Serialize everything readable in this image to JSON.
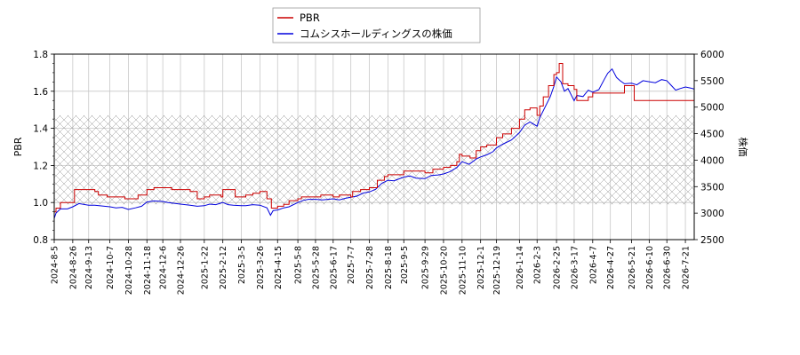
{
  "chart_data": {
    "type": "line",
    "legend": {
      "placement": "top-center",
      "entries": [
        {
          "label": "PBR",
          "color": "#cc0000"
        },
        {
          "label": "コムシスホールディングスの株価",
          "color": "#0000dd"
        }
      ]
    },
    "ylabel_left": "PBR",
    "ylabel_right": "株価",
    "ylim_left": [
      0.8,
      1.8
    ],
    "ylim_right": [
      2500,
      6000
    ],
    "yticks_left": [
      "0.8",
      "1.0",
      "1.2",
      "1.4",
      "1.6",
      "1.8"
    ],
    "yticks_right": [
      "2500",
      "3000",
      "3500",
      "4000",
      "4500",
      "5000",
      "5500",
      "6000"
    ],
    "xlim": [
      "2024-08-05",
      "2026-07-31"
    ],
    "xticks": [
      "2024-8-5",
      "2024-8-26",
      "2024-9-13",
      "2024-10-7",
      "2024-10-28",
      "2024-11-18",
      "2024-12-6",
      "2024-12-26",
      "2025-1-22",
      "2025-2-12",
      "2025-3-5",
      "2025-3-26",
      "2025-4-15",
      "2025-5-8",
      "2025-5-28",
      "2025-6-17",
      "2025-7-7",
      "2025-7-28",
      "2025-8-18",
      "2025-9-5",
      "2025-9-29",
      "2025-10-20",
      "2025-11-10",
      "2025-12-1",
      "2025-12-19",
      "2026-1-14",
      "2026-2-3",
      "2026-2-25",
      "2026-3-17",
      "2026-4-7",
      "2026-4-27",
      "2026-5-21",
      "2026-6-10",
      "2026-6-30",
      "2026-7-21"
    ],
    "hatched_band_left": [
      0.99,
      1.47
    ],
    "grid": true,
    "series": [
      {
        "name": "PBR",
        "axis": "left",
        "color": "#cc0000",
        "points": [
          [
            "2024-08-05",
            0.95
          ],
          [
            "2024-08-07",
            0.97
          ],
          [
            "2024-08-12",
            1.0
          ],
          [
            "2024-08-26",
            1.0
          ],
          [
            "2024-08-28",
            1.07
          ],
          [
            "2024-09-13",
            1.07
          ],
          [
            "2024-09-20",
            1.06
          ],
          [
            "2024-09-24",
            1.04
          ],
          [
            "2024-10-02",
            1.04
          ],
          [
            "2024-10-04",
            1.03
          ],
          [
            "2024-10-20",
            1.03
          ],
          [
            "2024-10-24",
            1.02
          ],
          [
            "2024-11-05",
            1.02
          ],
          [
            "2024-11-08",
            1.04
          ],
          [
            "2024-11-14",
            1.04
          ],
          [
            "2024-11-18",
            1.07
          ],
          [
            "2024-11-26",
            1.08
          ],
          [
            "2024-12-10",
            1.08
          ],
          [
            "2024-12-16",
            1.07
          ],
          [
            "2025-01-06",
            1.06
          ],
          [
            "2025-01-14",
            1.02
          ],
          [
            "2025-01-22",
            1.03
          ],
          [
            "2025-01-28",
            1.04
          ],
          [
            "2025-02-10",
            1.03
          ],
          [
            "2025-02-12",
            1.07
          ],
          [
            "2025-02-24",
            1.07
          ],
          [
            "2025-02-26",
            1.03
          ],
          [
            "2025-03-10",
            1.04
          ],
          [
            "2025-03-18",
            1.05
          ],
          [
            "2025-03-26",
            1.06
          ],
          [
            "2025-04-03",
            1.02
          ],
          [
            "2025-04-08",
            0.97
          ],
          [
            "2025-04-15",
            0.98
          ],
          [
            "2025-04-22",
            0.99
          ],
          [
            "2025-04-28",
            1.01
          ],
          [
            "2025-05-08",
            1.02
          ],
          [
            "2025-05-12",
            1.03
          ],
          [
            "2025-05-28",
            1.03
          ],
          [
            "2025-06-03",
            1.04
          ],
          [
            "2025-06-17",
            1.03
          ],
          [
            "2025-06-24",
            1.04
          ],
          [
            "2025-07-07",
            1.03
          ],
          [
            "2025-07-09",
            1.06
          ],
          [
            "2025-07-18",
            1.07
          ],
          [
            "2025-07-28",
            1.08
          ],
          [
            "2025-08-06",
            1.12
          ],
          [
            "2025-08-14",
            1.14
          ],
          [
            "2025-08-18",
            1.15
          ],
          [
            "2025-08-28",
            1.15
          ],
          [
            "2025-09-05",
            1.17
          ],
          [
            "2025-09-15",
            1.17
          ],
          [
            "2025-09-29",
            1.16
          ],
          [
            "2025-10-08",
            1.18
          ],
          [
            "2025-10-20",
            1.19
          ],
          [
            "2025-10-28",
            1.2
          ],
          [
            "2025-11-04",
            1.22
          ],
          [
            "2025-11-07",
            1.26
          ],
          [
            "2025-11-10",
            1.25
          ],
          [
            "2025-11-19",
            1.24
          ],
          [
            "2025-11-26",
            1.28
          ],
          [
            "2025-12-01",
            1.3
          ],
          [
            "2025-12-08",
            1.31
          ],
          [
            "2025-12-19",
            1.35
          ],
          [
            "2025-12-26",
            1.37
          ],
          [
            "2026-01-05",
            1.4
          ],
          [
            "2026-01-14",
            1.45
          ],
          [
            "2026-01-20",
            1.5
          ],
          [
            "2026-01-26",
            1.51
          ],
          [
            "2026-02-03",
            1.47
          ],
          [
            "2026-02-06",
            1.52
          ],
          [
            "2026-02-10",
            1.57
          ],
          [
            "2026-02-16",
            1.63
          ],
          [
            "2026-02-22",
            1.69
          ],
          [
            "2026-02-25",
            1.7
          ],
          [
            "2026-02-28",
            1.75
          ],
          [
            "2026-03-04",
            1.64
          ],
          [
            "2026-03-10",
            1.63
          ],
          [
            "2026-03-17",
            1.61
          ],
          [
            "2026-03-20",
            1.55
          ],
          [
            "2026-03-31",
            1.55
          ],
          [
            "2026-04-02",
            1.57
          ],
          [
            "2026-04-07",
            1.59
          ],
          [
            "2026-04-14",
            1.59
          ],
          [
            "2026-04-20",
            1.59
          ],
          [
            "2026-05-11",
            1.59
          ],
          [
            "2026-05-13",
            1.63
          ],
          [
            "2026-05-21",
            1.63
          ],
          [
            "2026-05-24",
            1.55
          ],
          [
            "2026-07-31",
            1.55
          ]
        ]
      },
      {
        "name": "コムシスホールディングスの株価",
        "axis": "right",
        "color": "#0000dd",
        "points": [
          [
            "2024-08-05",
            2900
          ],
          [
            "2024-08-07",
            3000
          ],
          [
            "2024-08-12",
            3080
          ],
          [
            "2024-08-20",
            3080
          ],
          [
            "2024-08-26",
            3120
          ],
          [
            "2024-09-02",
            3180
          ],
          [
            "2024-09-13",
            3150
          ],
          [
            "2024-09-20",
            3150
          ],
          [
            "2024-10-07",
            3120
          ],
          [
            "2024-10-14",
            3100
          ],
          [
            "2024-10-21",
            3110
          ],
          [
            "2024-10-28",
            3070
          ],
          [
            "2024-11-05",
            3100
          ],
          [
            "2024-11-12",
            3130
          ],
          [
            "2024-11-18",
            3210
          ],
          [
            "2024-11-26",
            3230
          ],
          [
            "2024-12-06",
            3220
          ],
          [
            "2024-12-12",
            3200
          ],
          [
            "2024-12-26",
            3170
          ],
          [
            "2025-01-06",
            3150
          ],
          [
            "2025-01-14",
            3130
          ],
          [
            "2025-01-22",
            3140
          ],
          [
            "2025-01-28",
            3170
          ],
          [
            "2025-02-04",
            3160
          ],
          [
            "2025-02-12",
            3200
          ],
          [
            "2025-02-18",
            3160
          ],
          [
            "2025-02-24",
            3150
          ],
          [
            "2025-03-05",
            3140
          ],
          [
            "2025-03-10",
            3140
          ],
          [
            "2025-03-18",
            3160
          ],
          [
            "2025-03-26",
            3150
          ],
          [
            "2025-04-03",
            3100
          ],
          [
            "2025-04-07",
            2960
          ],
          [
            "2025-04-10",
            3050
          ],
          [
            "2025-04-15",
            3060
          ],
          [
            "2025-04-22",
            3100
          ],
          [
            "2025-04-28",
            3120
          ],
          [
            "2025-05-08",
            3200
          ],
          [
            "2025-05-14",
            3240
          ],
          [
            "2025-05-20",
            3260
          ],
          [
            "2025-05-28",
            3260
          ],
          [
            "2025-06-05",
            3250
          ],
          [
            "2025-06-17",
            3270
          ],
          [
            "2025-06-24",
            3250
          ],
          [
            "2025-07-01",
            3280
          ],
          [
            "2025-07-07",
            3300
          ],
          [
            "2025-07-14",
            3320
          ],
          [
            "2025-07-21",
            3380
          ],
          [
            "2025-07-28",
            3400
          ],
          [
            "2025-08-04",
            3450
          ],
          [
            "2025-08-11",
            3560
          ],
          [
            "2025-08-18",
            3620
          ],
          [
            "2025-08-25",
            3610
          ],
          [
            "2025-09-05",
            3680
          ],
          [
            "2025-09-12",
            3700
          ],
          [
            "2025-09-19",
            3660
          ],
          [
            "2025-09-29",
            3650
          ],
          [
            "2025-10-06",
            3710
          ],
          [
            "2025-10-14",
            3720
          ],
          [
            "2025-10-20",
            3740
          ],
          [
            "2025-10-27",
            3780
          ],
          [
            "2025-11-04",
            3860
          ],
          [
            "2025-11-10",
            3970
          ],
          [
            "2025-11-18",
            3920
          ],
          [
            "2025-11-26",
            4020
          ],
          [
            "2025-12-01",
            4060
          ],
          [
            "2025-12-08",
            4100
          ],
          [
            "2025-12-15",
            4160
          ],
          [
            "2025-12-19",
            4230
          ],
          [
            "2025-12-26",
            4300
          ],
          [
            "2026-01-05",
            4380
          ],
          [
            "2026-01-14",
            4520
          ],
          [
            "2026-01-20",
            4660
          ],
          [
            "2026-01-26",
            4720
          ],
          [
            "2026-02-03",
            4640
          ],
          [
            "2026-02-06",
            4800
          ],
          [
            "2026-02-12",
            5000
          ],
          [
            "2026-02-18",
            5200
          ],
          [
            "2026-02-22",
            5390
          ],
          [
            "2026-02-25",
            5570
          ],
          [
            "2026-03-02",
            5480
          ],
          [
            "2026-03-06",
            5300
          ],
          [
            "2026-03-10",
            5350
          ],
          [
            "2026-03-17",
            5120
          ],
          [
            "2026-03-20",
            5220
          ],
          [
            "2026-03-27",
            5200
          ],
          [
            "2026-04-02",
            5320
          ],
          [
            "2026-04-07",
            5280
          ],
          [
            "2026-04-14",
            5330
          ],
          [
            "2026-04-20",
            5520
          ],
          [
            "2026-04-24",
            5640
          ],
          [
            "2026-04-29",
            5720
          ],
          [
            "2026-05-04",
            5560
          ],
          [
            "2026-05-08",
            5500
          ],
          [
            "2026-05-13",
            5440
          ],
          [
            "2026-05-21",
            5450
          ],
          [
            "2026-05-27",
            5420
          ],
          [
            "2026-06-03",
            5500
          ],
          [
            "2026-06-10",
            5480
          ],
          [
            "2026-06-17",
            5460
          ],
          [
            "2026-06-24",
            5520
          ],
          [
            "2026-06-30",
            5500
          ],
          [
            "2026-07-06",
            5390
          ],
          [
            "2026-07-10",
            5320
          ],
          [
            "2026-07-15",
            5350
          ],
          [
            "2026-07-21",
            5380
          ],
          [
            "2026-07-27",
            5360
          ],
          [
            "2026-07-31",
            5340
          ]
        ]
      }
    ]
  }
}
